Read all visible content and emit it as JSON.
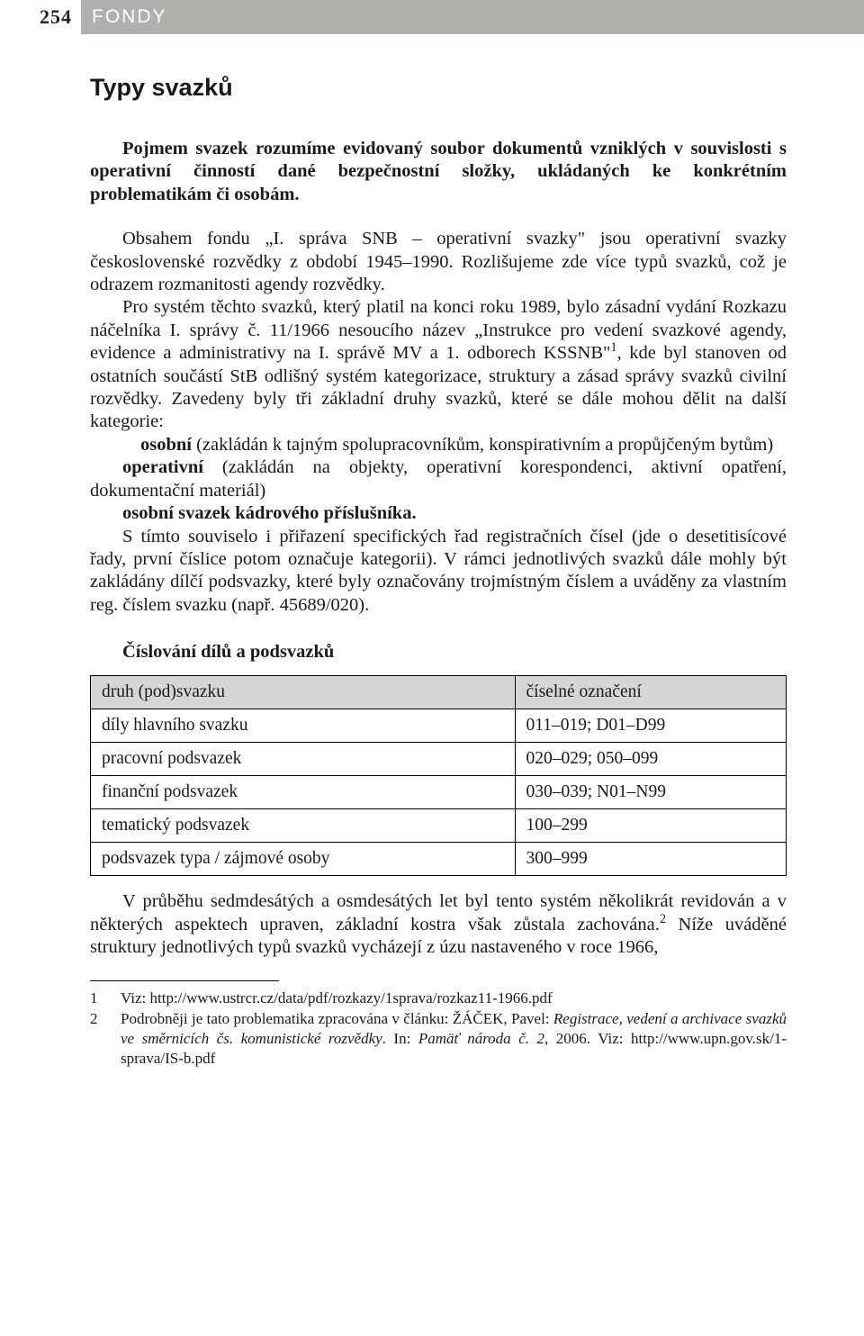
{
  "header": {
    "page_number": "254",
    "section_label": "FONDY"
  },
  "title": "Typy svazků",
  "intro": "Pojmem svazek rozumíme evidovaný soubor dokumentů vzniklých v souvislosti s operativní činností dané bezpečnostní složky, ukládaných ke konkrétním problematikám či osobám.",
  "body": {
    "p1": "Obsahem fondu „I. správa SNB – operativní svazky\" jsou operativní svazky československé rozvědky z období 1945–1990. Rozlišujeme zde více typů svazků, což je odrazem rozmanitosti agendy rozvědky.",
    "p2_a": "Pro systém těchto svazků, který platil na konci roku 1989, bylo zásadní vydání Rozkazu náčelníka I. správy č. 11/1966 nesoucího název „Instrukce pro vedení svazkové agendy, evidence a administrativy na I. správě MV a 1. odborech KSSNB\"",
    "p2_b": ", kde byl stanoven od ostatních součástí StB odlišný systém kategorizace, struktury a zásad správy svazků civilní rozvědky. Zavedeny byly tři základní druhy svazků, které se dále mohou dělit na další kategorie:",
    "cat1_label": "osobní",
    "cat1_text": " (zakládán k tajným spolupracovníkům, konspirativním a propůjčeným bytům)",
    "cat2_label": "operativní",
    "cat2_text": " (zakládán na objekty, operativní korespondenci, aktivní opatření, dokumentační materiál)",
    "cat3_label": "osobní svazek kádrového příslušníka.",
    "p3": "S tímto souviselo i přiřazení specifických řad registračních čísel (jde o desetitisícové řady, první číslice potom označuje kategorii). V rámci jednotlivých svazků dále mohly být zakládány dílčí podsvazky, které byly označovány trojmístným číslem a uváděny za vlastním reg. číslem svazku (např. 45689/020)."
  },
  "table": {
    "heading": "Číslování dílů a podsvazků",
    "columns": [
      "druh (pod)svazku",
      "číselné označení"
    ],
    "rows": [
      [
        "díly hlavního svazku",
        "011–019; D01–D99"
      ],
      [
        "pracovní podsvazek",
        "020–029; 050–099"
      ],
      [
        "finanční podsvazek",
        "030–039; N01–N99"
      ],
      [
        "tematický podsvazek",
        "100–299"
      ],
      [
        "podsvazek typa / zájmové osoby",
        "300–999"
      ]
    ]
  },
  "after_table": {
    "a": "V průběhu sedmdesátých a osmdesátých let byl tento systém několikrát revidován a v některých aspektech upraven, základní kostra však zůstala zachována.",
    "b": " Níže uváděné struktury jednotlivých typů svazků vycházejí z úzu nastaveného v roce 1966,"
  },
  "footnotes": {
    "1": {
      "num": "1",
      "text": "Viz: http://www.ustrcr.cz/data/pdf/rozkazy/1sprava/rozkaz11-1966.pdf"
    },
    "2": {
      "num": "2",
      "a": "Podrobněji je tato problematika zpracována v článku: ŽÁČEK, Pavel: ",
      "b": "Registrace, vedení a archivace svazků ve směrnicích čs. komunistické rozvědky",
      "c": ". In: ",
      "d": "Pamäť národa č. 2",
      "e": ", 2006. Viz: http://www.upn.gov.sk/1-sprava/IS-b.pdf"
    }
  }
}
